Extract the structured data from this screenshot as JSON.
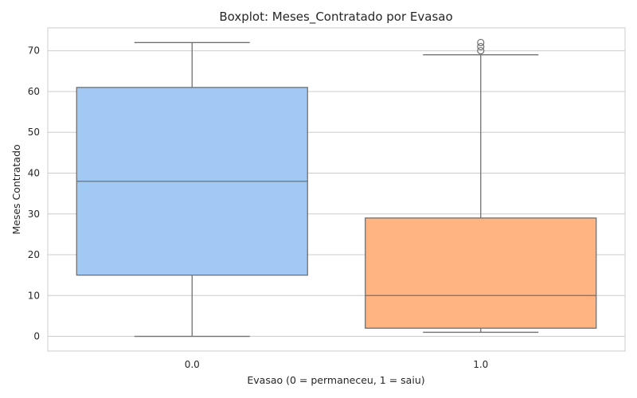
{
  "chart_data": {
    "type": "boxplot",
    "title": "Boxplot: Meses_Contratado por Evasao",
    "xlabel": "Evasao (0 = permaneceu, 1 = saiu)",
    "ylabel": "Meses Contratado",
    "categories": [
      "0.0",
      "1.0"
    ],
    "ylim": [
      -3.6,
      75.6
    ],
    "yticks": [
      0,
      10,
      20,
      30,
      40,
      50,
      60,
      70
    ],
    "grid": true,
    "boxes": [
      {
        "category": "0.0",
        "whisker_low": 0,
        "q1": 15,
        "median": 38,
        "q3": 61,
        "whisker_high": 72,
        "outliers": [],
        "color": "#a1c9f4"
      },
      {
        "category": "1.0",
        "whisker_low": 1,
        "q1": 2,
        "median": 10,
        "q3": 29,
        "whisker_high": 69,
        "outliers": [
          70,
          71,
          72
        ],
        "color": "#ffb482"
      }
    ]
  }
}
